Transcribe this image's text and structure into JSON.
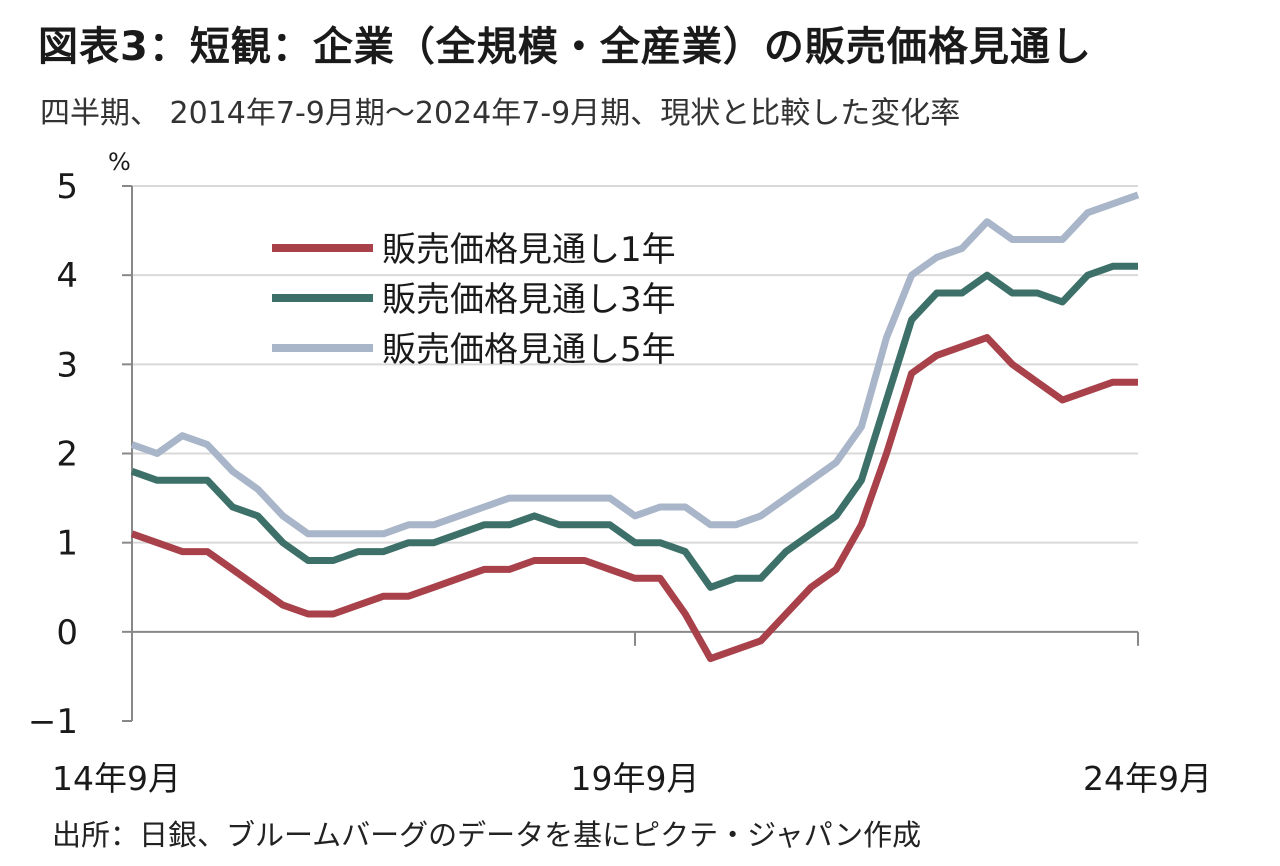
{
  "title": "図表3：短観：企業（全規模・全産業）の販売価格見通し",
  "subtitle": "四半期、 2014年7-9月期～2024年7-9月期、現状と比較した変化率",
  "source": "出所：日銀、ブルームバーグのデータを基にピクテ・ジャパン作成",
  "colors": {
    "series1": "#a8414a",
    "series2": "#3d7068",
    "series3": "#a9b5c8",
    "grid": "#d9d9d9",
    "axis": "#888888"
  },
  "chart_data": {
    "type": "line",
    "unit_label": "%",
    "ylim": [
      -1,
      5
    ],
    "yticks": [
      5,
      4,
      3,
      2,
      1,
      0,
      -1
    ],
    "ytick_labels": [
      "5",
      "4",
      "3",
      "2",
      "1",
      "0",
      "−1"
    ],
    "grid": true,
    "legend_position": "top-left",
    "x_tick_labels": [
      {
        "index": 0,
        "label": "14年9月"
      },
      {
        "index": 20,
        "label": "19年9月"
      },
      {
        "index": 40,
        "label": "24年9月"
      }
    ],
    "series": [
      {
        "name": "販売価格見通し1年",
        "color": "#a8414a",
        "values": [
          1.1,
          1.0,
          0.9,
          0.9,
          0.7,
          0.5,
          0.3,
          0.2,
          0.2,
          0.3,
          0.4,
          0.4,
          0.5,
          0.6,
          0.7,
          0.7,
          0.8,
          0.8,
          0.8,
          0.7,
          0.6,
          0.6,
          0.2,
          -0.3,
          -0.2,
          -0.1,
          0.2,
          0.5,
          0.7,
          1.2,
          2.0,
          2.9,
          3.1,
          3.2,
          3.3,
          3.0,
          2.8,
          2.6,
          2.7,
          2.8,
          2.8
        ]
      },
      {
        "name": "販売価格見通し3年",
        "color": "#3d7068",
        "values": [
          1.8,
          1.7,
          1.7,
          1.7,
          1.4,
          1.3,
          1.0,
          0.8,
          0.8,
          0.9,
          0.9,
          1.0,
          1.0,
          1.1,
          1.2,
          1.2,
          1.3,
          1.2,
          1.2,
          1.2,
          1.0,
          1.0,
          0.9,
          0.5,
          0.6,
          0.6,
          0.9,
          1.1,
          1.3,
          1.7,
          2.6,
          3.5,
          3.8,
          3.8,
          4.0,
          3.8,
          3.8,
          3.7,
          4.0,
          4.1,
          4.1
        ]
      },
      {
        "name": "販売価格見通し5年",
        "color": "#a9b5c8",
        "values": [
          2.1,
          2.0,
          2.2,
          2.1,
          1.8,
          1.6,
          1.3,
          1.1,
          1.1,
          1.1,
          1.1,
          1.2,
          1.2,
          1.3,
          1.4,
          1.5,
          1.5,
          1.5,
          1.5,
          1.5,
          1.3,
          1.4,
          1.4,
          1.2,
          1.2,
          1.3,
          1.5,
          1.7,
          1.9,
          2.3,
          3.3,
          4.0,
          4.2,
          4.3,
          4.6,
          4.4,
          4.4,
          4.4,
          4.7,
          4.8,
          4.9
        ]
      }
    ]
  }
}
